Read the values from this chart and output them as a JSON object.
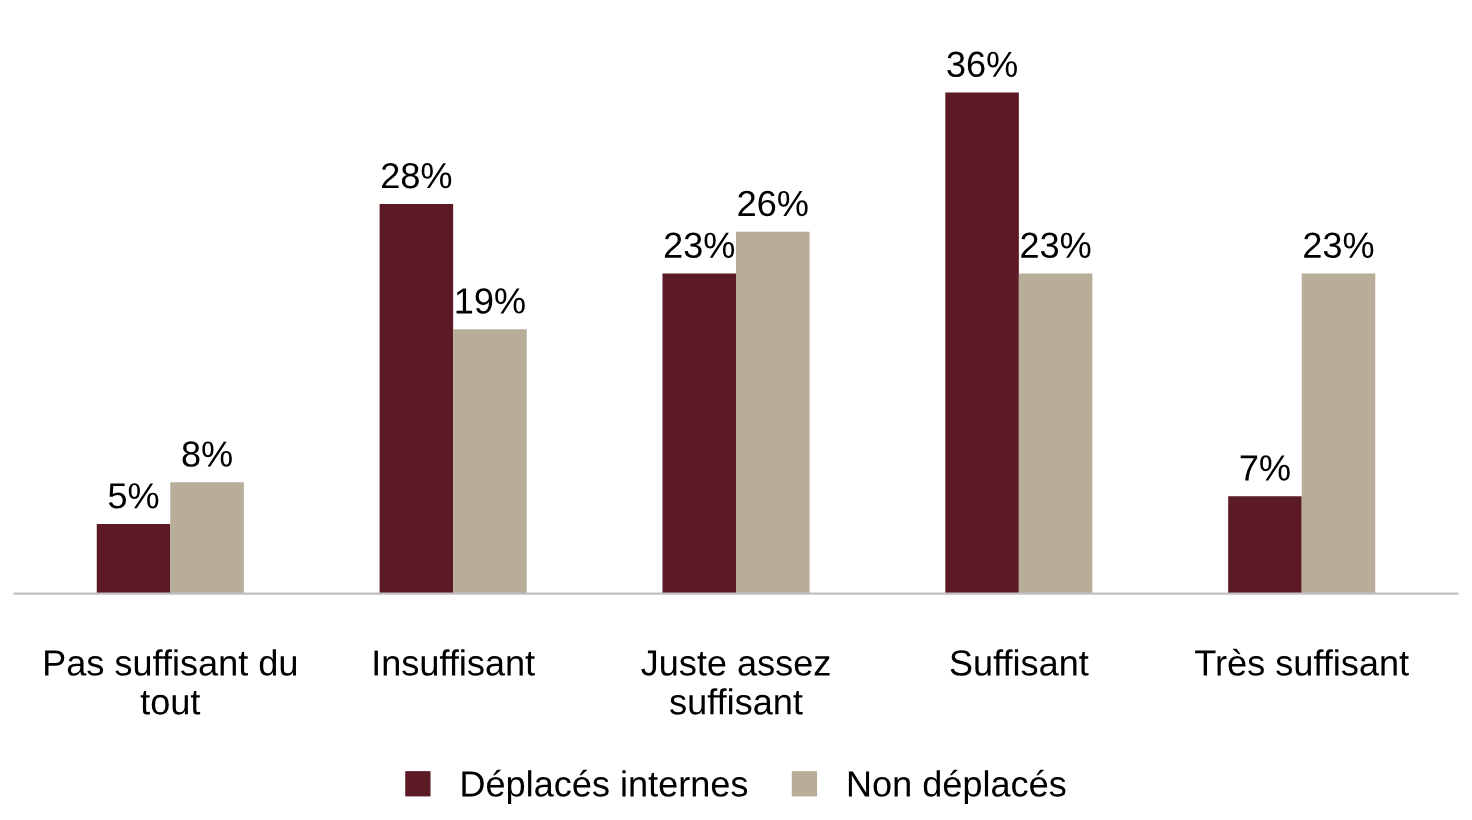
{
  "chart_data": {
    "type": "bar",
    "categories": [
      "Pas suffisant du\ntout",
      "Insuffisant",
      "Juste assez\nsuffisant",
      "Suffisant",
      "Très suffisant"
    ],
    "series": [
      {
        "name": "Déplacés internes",
        "color": "#5c1a27",
        "values": [
          5,
          28,
          23,
          36,
          7
        ],
        "value_labels": [
          "5%",
          "28%",
          "23%",
          "36%",
          "7%"
        ]
      },
      {
        "name": "Non déplacés",
        "color": "#b8ad98",
        "values": [
          8,
          19,
          26,
          23,
          23
        ],
        "value_labels": [
          "8%",
          "19%",
          "26%",
          "23%",
          "23%"
        ]
      }
    ],
    "legend": "bottom",
    "grid": false
  }
}
